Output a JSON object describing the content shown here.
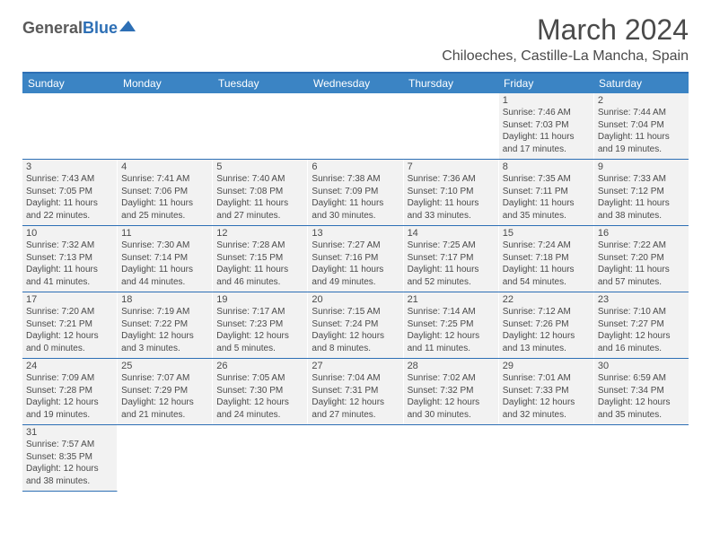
{
  "logo": {
    "textA": "General",
    "textB": "Blue"
  },
  "title": "March 2024",
  "location": "Chiloeches, Castille-La Mancha, Spain",
  "colors": {
    "header_bg": "#3b84c4",
    "border": "#2d6fb5",
    "cell_bg": "#f2f2f2",
    "text": "#4a4a4a"
  },
  "dayNames": [
    "Sunday",
    "Monday",
    "Tuesday",
    "Wednesday",
    "Thursday",
    "Friday",
    "Saturday"
  ],
  "weeks": [
    [
      null,
      null,
      null,
      null,
      null,
      {
        "n": "1",
        "sr": "7:46 AM",
        "ss": "7:03 PM",
        "dl": "11 hours and 17 minutes."
      },
      {
        "n": "2",
        "sr": "7:44 AM",
        "ss": "7:04 PM",
        "dl": "11 hours and 19 minutes."
      }
    ],
    [
      {
        "n": "3",
        "sr": "7:43 AM",
        "ss": "7:05 PM",
        "dl": "11 hours and 22 minutes."
      },
      {
        "n": "4",
        "sr": "7:41 AM",
        "ss": "7:06 PM",
        "dl": "11 hours and 25 minutes."
      },
      {
        "n": "5",
        "sr": "7:40 AM",
        "ss": "7:08 PM",
        "dl": "11 hours and 27 minutes."
      },
      {
        "n": "6",
        "sr": "7:38 AM",
        "ss": "7:09 PM",
        "dl": "11 hours and 30 minutes."
      },
      {
        "n": "7",
        "sr": "7:36 AM",
        "ss": "7:10 PM",
        "dl": "11 hours and 33 minutes."
      },
      {
        "n": "8",
        "sr": "7:35 AM",
        "ss": "7:11 PM",
        "dl": "11 hours and 35 minutes."
      },
      {
        "n": "9",
        "sr": "7:33 AM",
        "ss": "7:12 PM",
        "dl": "11 hours and 38 minutes."
      }
    ],
    [
      {
        "n": "10",
        "sr": "7:32 AM",
        "ss": "7:13 PM",
        "dl": "11 hours and 41 minutes."
      },
      {
        "n": "11",
        "sr": "7:30 AM",
        "ss": "7:14 PM",
        "dl": "11 hours and 44 minutes."
      },
      {
        "n": "12",
        "sr": "7:28 AM",
        "ss": "7:15 PM",
        "dl": "11 hours and 46 minutes."
      },
      {
        "n": "13",
        "sr": "7:27 AM",
        "ss": "7:16 PM",
        "dl": "11 hours and 49 minutes."
      },
      {
        "n": "14",
        "sr": "7:25 AM",
        "ss": "7:17 PM",
        "dl": "11 hours and 52 minutes."
      },
      {
        "n": "15",
        "sr": "7:24 AM",
        "ss": "7:18 PM",
        "dl": "11 hours and 54 minutes."
      },
      {
        "n": "16",
        "sr": "7:22 AM",
        "ss": "7:20 PM",
        "dl": "11 hours and 57 minutes."
      }
    ],
    [
      {
        "n": "17",
        "sr": "7:20 AM",
        "ss": "7:21 PM",
        "dl": "12 hours and 0 minutes."
      },
      {
        "n": "18",
        "sr": "7:19 AM",
        "ss": "7:22 PM",
        "dl": "12 hours and 3 minutes."
      },
      {
        "n": "19",
        "sr": "7:17 AM",
        "ss": "7:23 PM",
        "dl": "12 hours and 5 minutes."
      },
      {
        "n": "20",
        "sr": "7:15 AM",
        "ss": "7:24 PM",
        "dl": "12 hours and 8 minutes."
      },
      {
        "n": "21",
        "sr": "7:14 AM",
        "ss": "7:25 PM",
        "dl": "12 hours and 11 minutes."
      },
      {
        "n": "22",
        "sr": "7:12 AM",
        "ss": "7:26 PM",
        "dl": "12 hours and 13 minutes."
      },
      {
        "n": "23",
        "sr": "7:10 AM",
        "ss": "7:27 PM",
        "dl": "12 hours and 16 minutes."
      }
    ],
    [
      {
        "n": "24",
        "sr": "7:09 AM",
        "ss": "7:28 PM",
        "dl": "12 hours and 19 minutes."
      },
      {
        "n": "25",
        "sr": "7:07 AM",
        "ss": "7:29 PM",
        "dl": "12 hours and 21 minutes."
      },
      {
        "n": "26",
        "sr": "7:05 AM",
        "ss": "7:30 PM",
        "dl": "12 hours and 24 minutes."
      },
      {
        "n": "27",
        "sr": "7:04 AM",
        "ss": "7:31 PM",
        "dl": "12 hours and 27 minutes."
      },
      {
        "n": "28",
        "sr": "7:02 AM",
        "ss": "7:32 PM",
        "dl": "12 hours and 30 minutes."
      },
      {
        "n": "29",
        "sr": "7:01 AM",
        "ss": "7:33 PM",
        "dl": "12 hours and 32 minutes."
      },
      {
        "n": "30",
        "sr": "6:59 AM",
        "ss": "7:34 PM",
        "dl": "12 hours and 35 minutes."
      }
    ],
    [
      {
        "n": "31",
        "sr": "7:57 AM",
        "ss": "8:35 PM",
        "dl": "12 hours and 38 minutes."
      },
      null,
      null,
      null,
      null,
      null,
      null
    ]
  ],
  "labels": {
    "sunrise": "Sunrise:",
    "sunset": "Sunset:",
    "daylight": "Daylight:"
  }
}
